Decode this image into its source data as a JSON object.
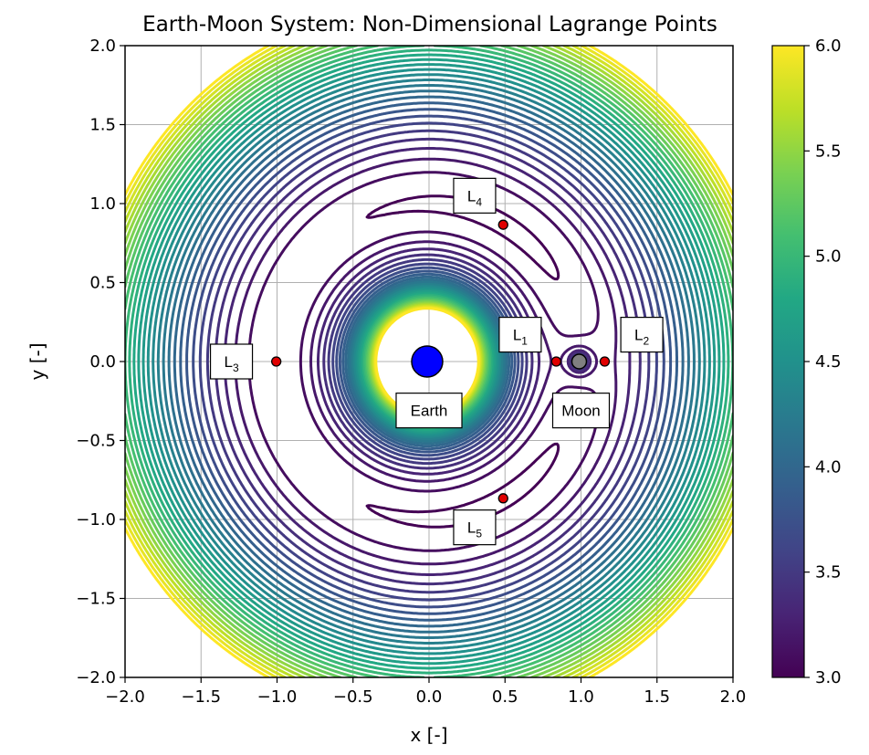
{
  "chart_data": {
    "type": "contour",
    "title": "Earth-Moon System: Non-Dimensional Lagrange Points",
    "xlabel": "x [-]",
    "ylabel": "y [-]",
    "xlim": [
      -2.0,
      2.0
    ],
    "ylim": [
      -2.0,
      2.0
    ],
    "grid": true,
    "x_ticks": [
      "−2.0",
      "−1.5",
      "−1.0",
      "−0.5",
      "0.0",
      "0.5",
      "1.0",
      "1.5",
      "2.0"
    ],
    "y_ticks": [
      "2.0",
      "1.5",
      "1.0",
      "0.5",
      "0.0",
      "−0.5",
      "−1.0",
      "−1.5",
      "−2.0"
    ],
    "colorbar": {
      "min": 3.0,
      "max": 6.0,
      "ticks": [
        "6.0",
        "5.5",
        "5.0",
        "4.5",
        "4.0",
        "3.5",
        "3.0"
      ],
      "colormap": "viridis"
    },
    "mu": 0.01215,
    "contour_levels": {
      "start": 3.0,
      "end": 6.0,
      "count": 31
    },
    "bodies": [
      {
        "name": "Earth",
        "x": -0.01215,
        "y": 0.0,
        "color": "#0000ff",
        "label_x": 0.0,
        "label_y": -0.31
      },
      {
        "name": "Moon",
        "x": 0.98785,
        "y": 0.0,
        "color": "#808080",
        "label_x": 1.0,
        "label_y": -0.31
      }
    ],
    "lagrange_points": [
      {
        "name": "L",
        "sub": "1",
        "x": 0.837,
        "y": 0.0,
        "label_x": 0.6,
        "label_y": 0.17
      },
      {
        "name": "L",
        "sub": "2",
        "x": 1.156,
        "y": 0.0,
        "label_x": 1.4,
        "label_y": 0.17
      },
      {
        "name": "L",
        "sub": "3",
        "x": -1.005,
        "y": 0.0,
        "label_x": -1.3,
        "label_y": 0.0
      },
      {
        "name": "L",
        "sub": "4",
        "x": 0.488,
        "y": 0.866,
        "label_x": 0.3,
        "label_y": 1.05
      },
      {
        "name": "L",
        "sub": "5",
        "x": 0.488,
        "y": -0.866,
        "label_x": 0.3,
        "label_y": -1.05
      }
    ],
    "point_color": "#e00000"
  }
}
